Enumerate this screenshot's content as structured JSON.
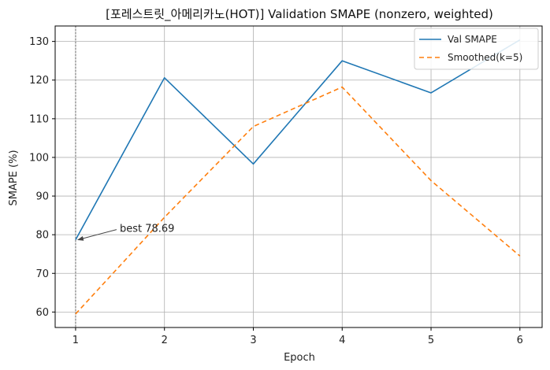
{
  "chart_data": {
    "type": "line",
    "title": "[포레스트릿_아메리카노(HOT)] Validation SMAPE (nonzero, weighted)",
    "xlabel": "Epoch",
    "ylabel": "SMAPE (%)",
    "x": [
      1,
      2,
      3,
      4,
      5,
      6
    ],
    "xlim": [
      0.77,
      6.25
    ],
    "ylim": [
      56,
      134
    ],
    "xticks": [
      1,
      2,
      3,
      4,
      5,
      6
    ],
    "yticks": [
      60,
      70,
      80,
      90,
      100,
      110,
      120,
      130
    ],
    "grid": true,
    "legend_position": "top-right",
    "series": [
      {
        "name": "Val SMAPE",
        "values": [
          78.69,
          120.6,
          98.3,
          125.0,
          116.7,
          130.4
        ],
        "color": "#1f77b4",
        "style": "solid"
      },
      {
        "name": "Smoothed(k=5)",
        "values": [
          59.5,
          84.5,
          108.0,
          118.2,
          94.0,
          74.5
        ],
        "color": "#ff7f0e",
        "style": "dashed"
      }
    ],
    "best_marker": {
      "x": 1,
      "color": "#888888",
      "style": "dotted"
    },
    "annotation": {
      "text": "best 78.69",
      "x": 1,
      "y": 78.69
    }
  }
}
